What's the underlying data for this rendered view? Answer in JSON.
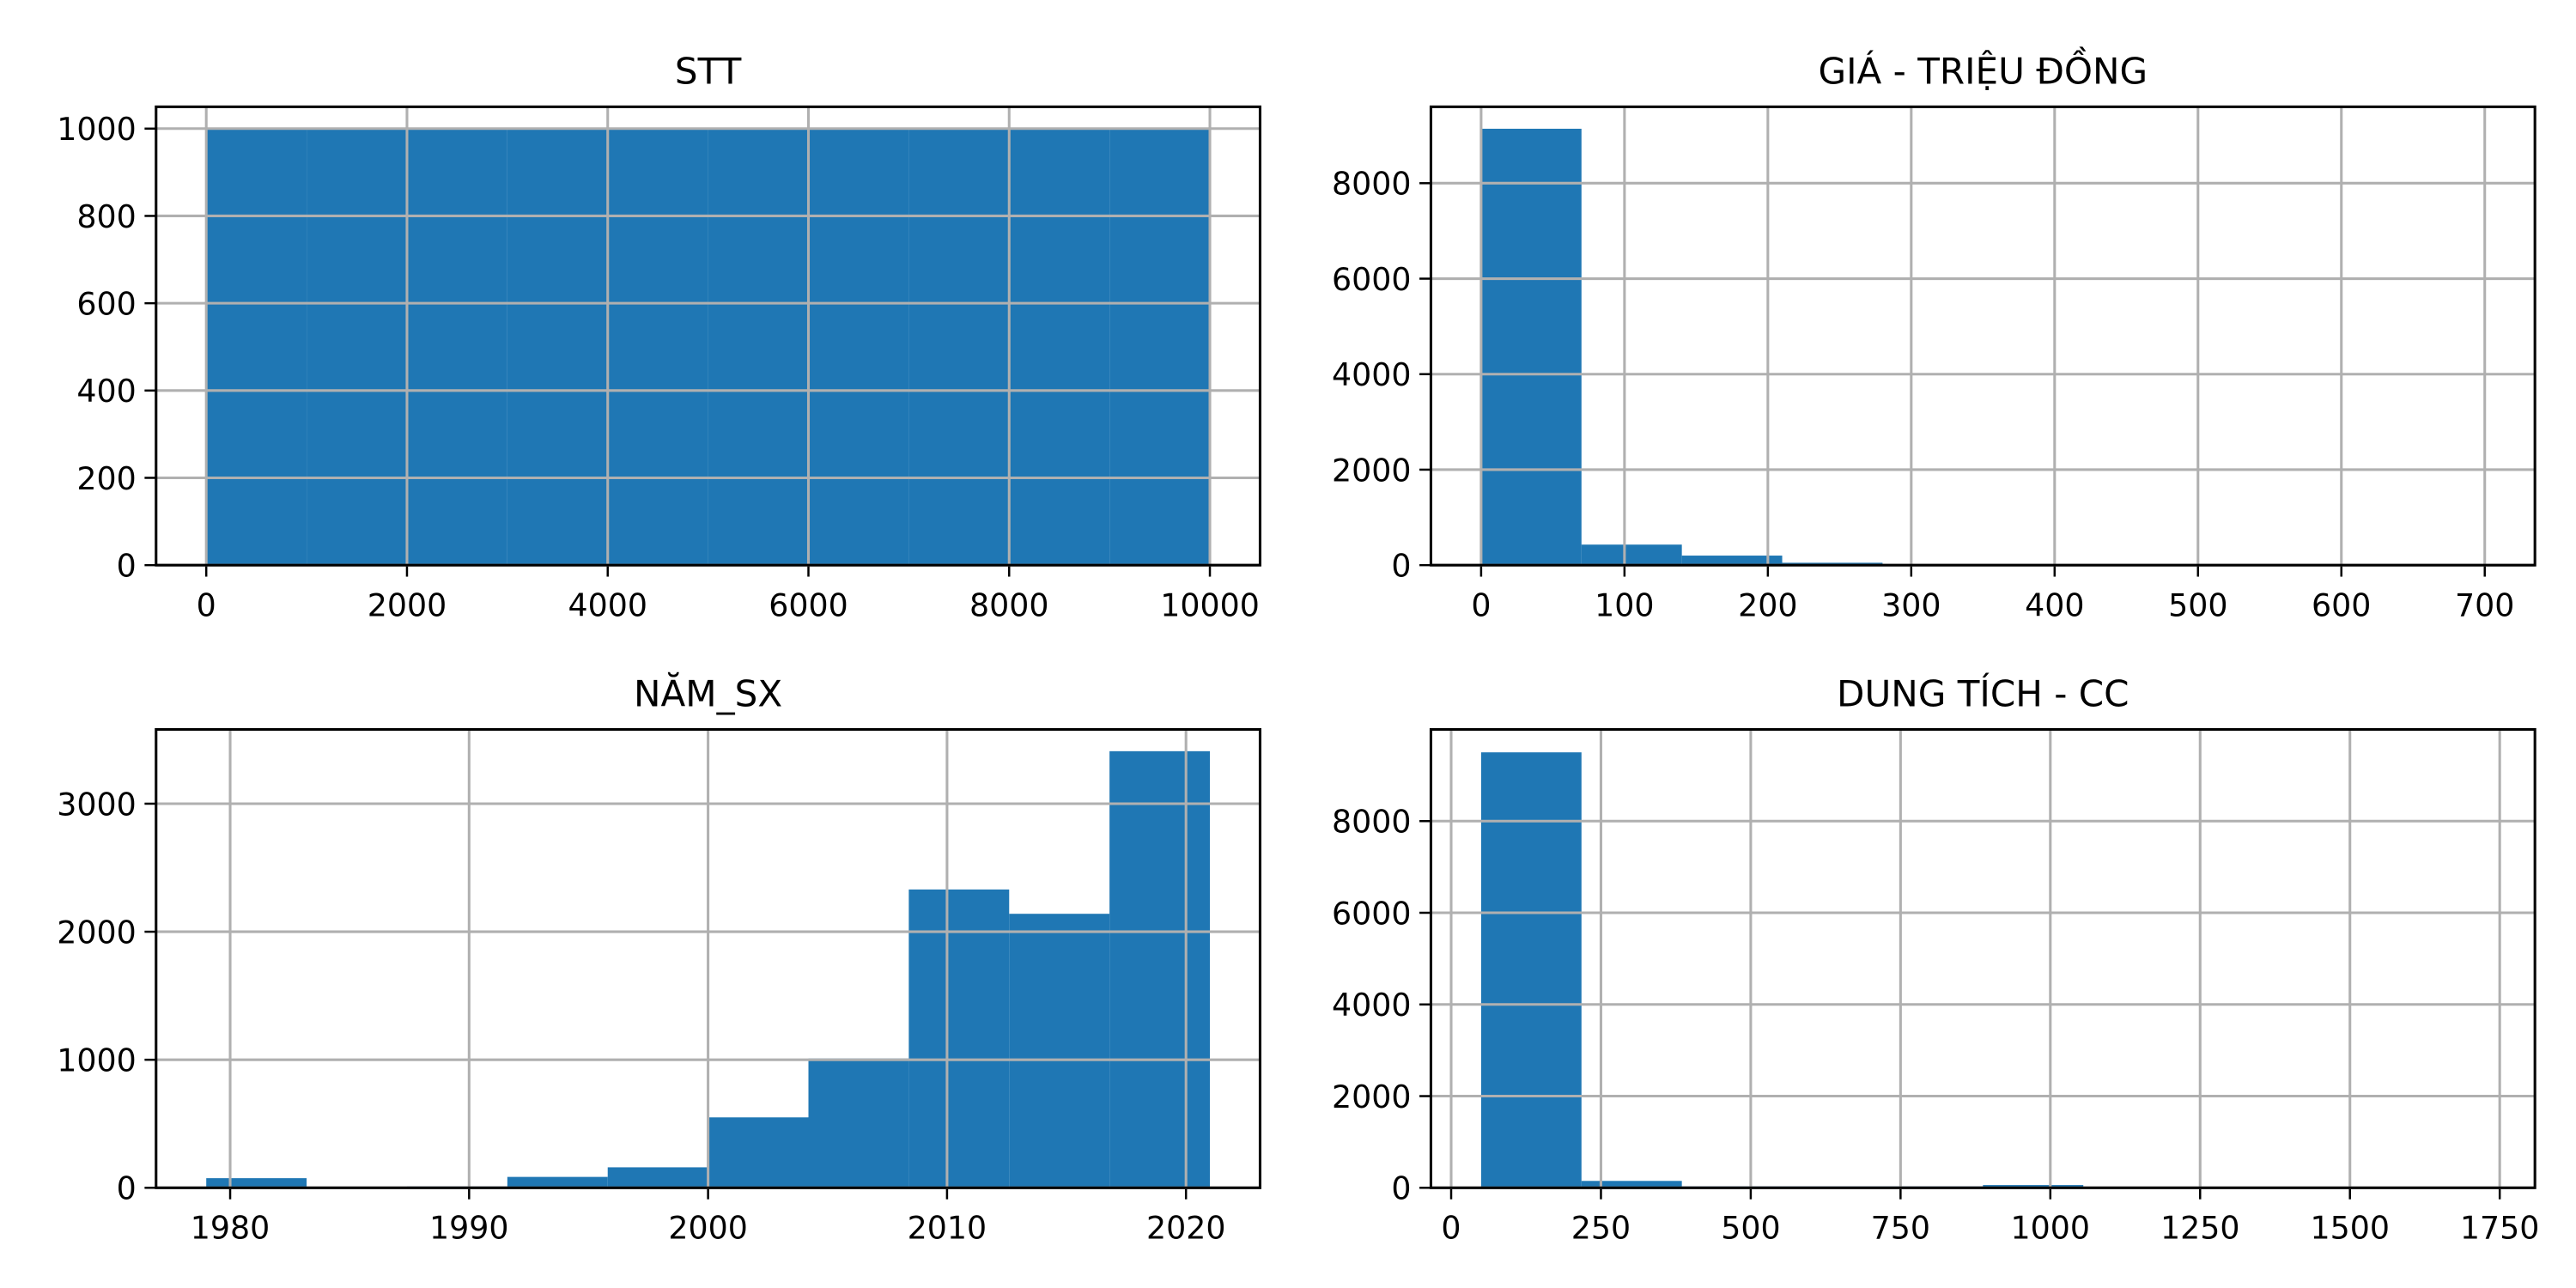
{
  "chart_data": [
    {
      "type": "histogram",
      "title": "STT",
      "color": "#1f77b4",
      "grid": true,
      "bins": [
        0,
        1000,
        2000,
        3000,
        4000,
        5000,
        6000,
        7000,
        8000,
        9000,
        10000
      ],
      "values": [
        1000,
        1000,
        1000,
        1000,
        1000,
        1000,
        1000,
        1000,
        1000,
        1000
      ],
      "xlim": [
        -500,
        10500
      ],
      "ylim": [
        0,
        1050
      ],
      "xticks": [
        0,
        2000,
        4000,
        6000,
        8000,
        10000
      ],
      "yticks": [
        0,
        200,
        400,
        600,
        800,
        1000
      ]
    },
    {
      "type": "histogram",
      "title": "GIÁ - TRIỆU ĐỒNG",
      "color": "#1f77b4",
      "grid": true,
      "bins": [
        0,
        70,
        140,
        210,
        280,
        350,
        420,
        490,
        560,
        630,
        700
      ],
      "values": [
        9140,
        430,
        200,
        50,
        15,
        5,
        3,
        2,
        1,
        1
      ],
      "xlim": [
        -35,
        735
      ],
      "ylim": [
        0,
        9600
      ],
      "xticks": [
        0,
        100,
        200,
        300,
        400,
        500,
        600,
        700
      ],
      "yticks": [
        0,
        2000,
        4000,
        6000,
        8000
      ]
    },
    {
      "type": "histogram",
      "title": "NĂM_SX",
      "color": "#1f77b4",
      "grid": true,
      "bins": [
        1979,
        1983.2,
        1987.4,
        1991.6,
        1995.8,
        2000,
        2004.2,
        2008.4,
        2012.6,
        2016.8,
        2021
      ],
      "values": [
        75,
        0,
        10,
        85,
        160,
        550,
        1010,
        2330,
        2140,
        3410
      ],
      "xlim": [
        1976.9,
        2023.1
      ],
      "ylim": [
        0,
        3580
      ],
      "xticks": [
        1980,
        1990,
        2000,
        2010,
        2020
      ],
      "yticks": [
        0,
        1000,
        2000,
        3000
      ]
    },
    {
      "type": "histogram",
      "title": "DUNG TÍCH - CC",
      "color": "#1f77b4",
      "grid": true,
      "bins": [
        50,
        217.5,
        385,
        552.5,
        720,
        887.5,
        1055,
        1222.5,
        1390,
        1557.5,
        1725
      ],
      "values": [
        9500,
        150,
        30,
        30,
        30,
        60,
        5,
        3,
        2,
        3
      ],
      "xlim": [
        -33.75,
        1808.75
      ],
      "ylim": [
        0,
        10000
      ],
      "xticks": [
        0,
        250,
        500,
        750,
        1000,
        1250,
        1500,
        1750
      ],
      "yticks": [
        0,
        2000,
        4000,
        6000,
        8000
      ]
    }
  ]
}
